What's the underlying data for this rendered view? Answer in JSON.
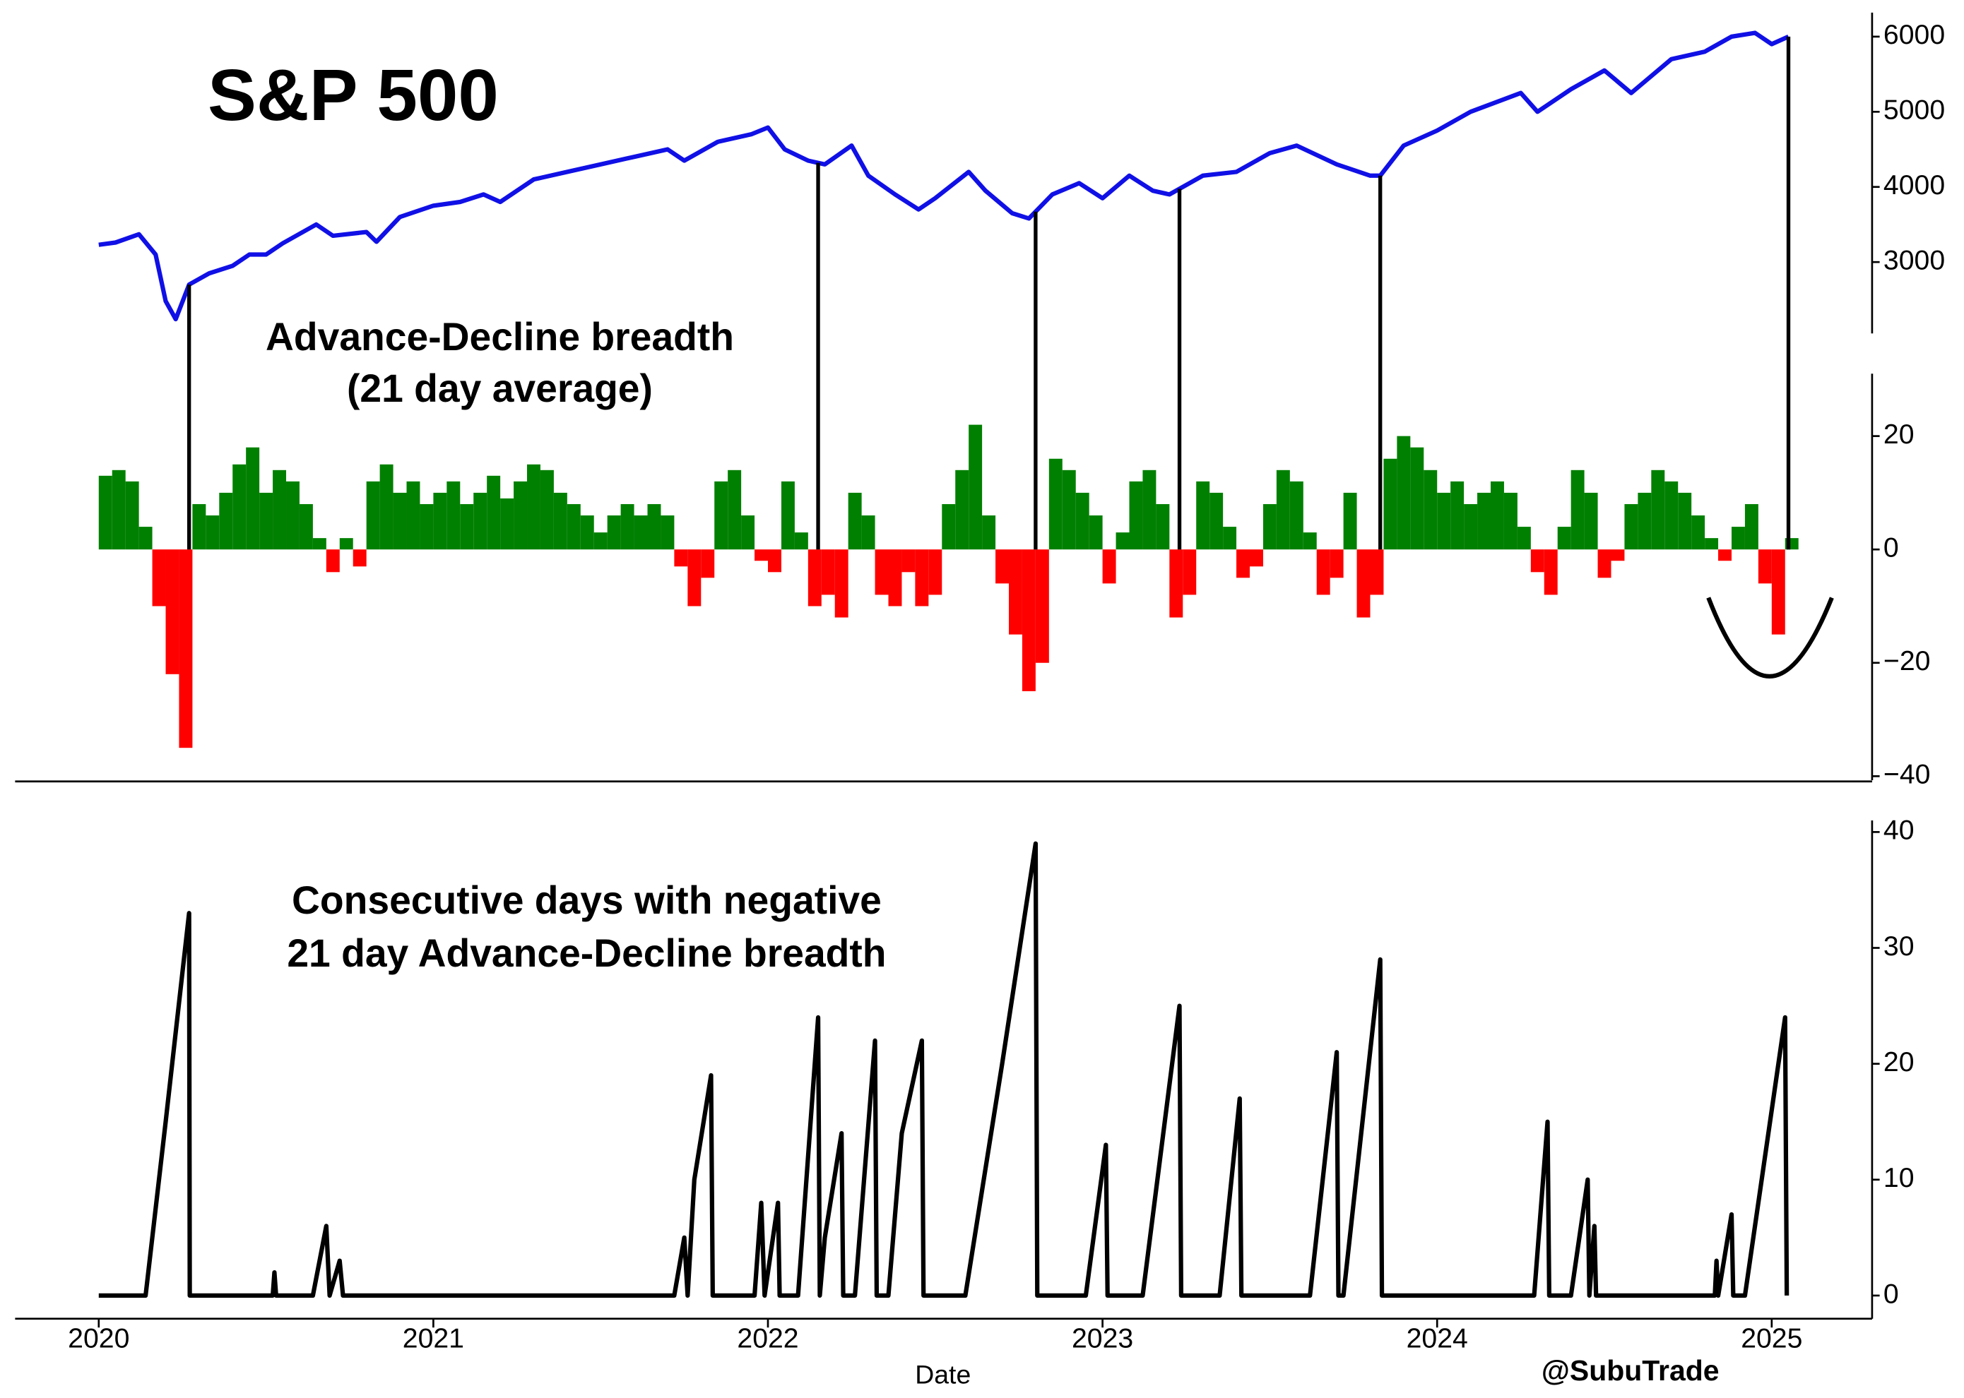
{
  "title": "S&P 500",
  "credit": "@SubuTrade",
  "event_dates": [
    2020.27,
    2022.15,
    2022.8,
    2023.23,
    2023.83,
    2025.05
  ],
  "chart_data": [
    {
      "type": "line",
      "name": "S&P 500",
      "color": "#1010e6",
      "axis": "y2",
      "xlim": [
        2019.75,
        2025.3
      ],
      "ylim": [
        2050,
        6320
      ],
      "yticks": [
        3000,
        4000,
        5000,
        6000
      ],
      "x": [
        2020.0,
        2020.05,
        2020.12,
        2020.17,
        2020.2,
        2020.23,
        2020.27,
        2020.33,
        2020.4,
        2020.45,
        2020.5,
        2020.55,
        2020.65,
        2020.7,
        2020.8,
        2020.83,
        2020.9,
        2021.0,
        2021.08,
        2021.15,
        2021.2,
        2021.3,
        2021.4,
        2021.5,
        2021.6,
        2021.7,
        2021.75,
        2021.85,
        2021.95,
        2022.0,
        2022.05,
        2022.12,
        2022.17,
        2022.25,
        2022.3,
        2022.38,
        2022.45,
        2022.5,
        2022.6,
        2022.65,
        2022.73,
        2022.78,
        2022.85,
        2022.93,
        2023.0,
        2023.08,
        2023.15,
        2023.2,
        2023.3,
        2023.4,
        2023.5,
        2023.58,
        2023.7,
        2023.8,
        2023.83,
        2023.9,
        2024.0,
        2024.1,
        2024.25,
        2024.3,
        2024.4,
        2024.5,
        2024.58,
        2024.62,
        2024.7,
        2024.8,
        2024.88,
        2024.95,
        2025.0,
        2025.05
      ],
      "values": [
        3230,
        3260,
        3370,
        3100,
        2480,
        2240,
        2700,
        2850,
        2950,
        3100,
        3100,
        3250,
        3500,
        3350,
        3400,
        3270,
        3600,
        3750,
        3800,
        3900,
        3800,
        4100,
        4200,
        4300,
        4400,
        4500,
        4350,
        4600,
        4700,
        4790,
        4500,
        4350,
        4300,
        4550,
        4150,
        3900,
        3700,
        3850,
        4200,
        3950,
        3650,
        3580,
        3900,
        4050,
        3850,
        4150,
        3950,
        3900,
        4150,
        4200,
        4450,
        4550,
        4300,
        4150,
        4150,
        4550,
        4750,
        5000,
        5250,
        5000,
        5300,
        5550,
        5250,
        5400,
        5700,
        5800,
        6000,
        6050,
        5900,
        6000
      ]
    },
    {
      "type": "bar",
      "annotation": [
        "Advance-Decline breadth",
        "(21 day average)"
      ],
      "pos_color": "#008000",
      "neg_color": "#ff0000",
      "bar_width": 0.04,
      "xlim": [
        2019.75,
        2025.3
      ],
      "ylim": [
        -40.7,
        31
      ],
      "yticks": [
        {
          "value": -40,
          "label": "−40"
        },
        {
          "value": -20,
          "label": "−20"
        },
        0,
        20
      ],
      "x": [
        2020.0,
        2020.04,
        2020.08,
        2020.12,
        2020.16,
        2020.2,
        2020.24,
        2020.28,
        2020.32,
        2020.36,
        2020.4,
        2020.44,
        2020.48,
        2020.52,
        2020.56,
        2020.6,
        2020.64,
        2020.68,
        2020.72,
        2020.76,
        2020.8,
        2020.84,
        2020.88,
        2020.92,
        2020.96,
        2021.0,
        2021.04,
        2021.08,
        2021.12,
        2021.16,
        2021.2,
        2021.24,
        2021.28,
        2021.32,
        2021.36,
        2021.4,
        2021.44,
        2021.48,
        2021.52,
        2021.56,
        2021.6,
        2021.64,
        2021.68,
        2021.72,
        2021.76,
        2021.8,
        2021.84,
        2021.88,
        2021.92,
        2021.96,
        2022.0,
        2022.04,
        2022.08,
        2022.12,
        2022.16,
        2022.2,
        2022.24,
        2022.28,
        2022.32,
        2022.36,
        2022.4,
        2022.44,
        2022.48,
        2022.52,
        2022.56,
        2022.6,
        2022.64,
        2022.68,
        2022.72,
        2022.76,
        2022.8,
        2022.84,
        2022.88,
        2022.92,
        2022.96,
        2023.0,
        2023.04,
        2023.08,
        2023.12,
        2023.16,
        2023.2,
        2023.24,
        2023.28,
        2023.32,
        2023.36,
        2023.4,
        2023.44,
        2023.48,
        2023.52,
        2023.56,
        2023.6,
        2023.64,
        2023.68,
        2023.72,
        2023.76,
        2023.8,
        2023.84,
        2023.88,
        2023.92,
        2023.96,
        2024.0,
        2024.04,
        2024.08,
        2024.12,
        2024.16,
        2024.2,
        2024.24,
        2024.28,
        2024.32,
        2024.36,
        2024.4,
        2024.44,
        2024.48,
        2024.52,
        2024.56,
        2024.6,
        2024.64,
        2024.68,
        2024.72,
        2024.76,
        2024.8,
        2024.84,
        2024.88,
        2024.92,
        2024.96,
        2025.0,
        2025.04
      ],
      "values": [
        13,
        14,
        12,
        4,
        -10,
        -22,
        -35,
        8,
        6,
        10,
        15,
        18,
        10,
        14,
        12,
        8,
        2,
        -4,
        2,
        -3,
        12,
        15,
        10,
        12,
        8,
        10,
        12,
        8,
        10,
        13,
        9,
        12,
        15,
        14,
        10,
        8,
        6,
        3,
        6,
        8,
        6,
        8,
        6,
        -3,
        -10,
        -5,
        12,
        14,
        6,
        -2,
        -4,
        12,
        3,
        -10,
        -8,
        -12,
        10,
        6,
        -8,
        -10,
        -4,
        -10,
        -8,
        8,
        14,
        22,
        6,
        -6,
        -15,
        -25,
        -20,
        16,
        14,
        10,
        6,
        -6,
        3,
        12,
        14,
        8,
        -12,
        -8,
        12,
        10,
        4,
        -5,
        -3,
        8,
        14,
        12,
        3,
        -8,
        -5,
        10,
        -12,
        -8,
        16,
        20,
        18,
        14,
        10,
        12,
        8,
        10,
        12,
        10,
        4,
        -4,
        -8,
        4,
        14,
        10,
        -5,
        -2,
        8,
        10,
        14,
        12,
        10,
        6,
        2,
        -2,
        4,
        8,
        -6,
        -15,
        2
      ]
    },
    {
      "type": "line",
      "annotation": [
        "Consecutive days with negative",
        "21 day Advance-Decline breadth"
      ],
      "color": "#000000",
      "xlabel": "Date",
      "xlim": [
        2019.75,
        2025.3
      ],
      "ylim": [
        -2,
        41
      ],
      "yticks": [
        0,
        10,
        20,
        30,
        40
      ],
      "xticks": [
        2020,
        2021,
        2022,
        2023,
        2024,
        2025
      ],
      "x": [
        2020.0,
        2020.14,
        2020.2,
        2020.27,
        2020.272,
        2020.52,
        2020.525,
        2020.53,
        2020.64,
        2020.68,
        2020.69,
        2020.72,
        2020.73,
        2021.72,
        2021.75,
        2021.76,
        2021.78,
        2021.83,
        2021.835,
        2021.96,
        2021.98,
        2021.99,
        2022.03,
        2022.035,
        2022.09,
        2022.15,
        2022.155,
        2022.17,
        2022.22,
        2022.225,
        2022.26,
        2022.32,
        2022.325,
        2022.36,
        2022.4,
        2022.46,
        2022.465,
        2022.59,
        2022.7,
        2022.8,
        2022.805,
        2022.95,
        2023.01,
        2023.015,
        2023.12,
        2023.23,
        2023.235,
        2023.35,
        2023.41,
        2023.415,
        2023.62,
        2023.7,
        2023.705,
        2023.72,
        2023.83,
        2023.835,
        2024.29,
        2024.33,
        2024.335,
        2024.4,
        2024.45,
        2024.455,
        2024.47,
        2024.475,
        2024.83,
        2024.835,
        2024.84,
        2024.88,
        2024.885,
        2024.92,
        2025.04,
        2025.045
      ],
      "values": [
        0,
        0,
        15,
        33,
        0,
        0,
        2,
        0,
        0,
        6,
        0,
        3,
        0,
        0,
        5,
        0,
        10,
        19,
        0,
        0,
        8,
        0,
        8,
        0,
        0,
        24,
        0,
        5,
        14,
        0,
        0,
        22,
        0,
        0,
        14,
        22,
        0,
        0,
        20,
        39,
        0,
        0,
        13,
        0,
        0,
        25,
        0,
        0,
        17,
        0,
        0,
        21,
        0,
        0,
        29,
        0,
        0,
        15,
        0,
        0,
        10,
        0,
        6,
        0,
        0,
        3,
        0,
        7,
        0,
        0,
        24,
        0
      ]
    }
  ]
}
